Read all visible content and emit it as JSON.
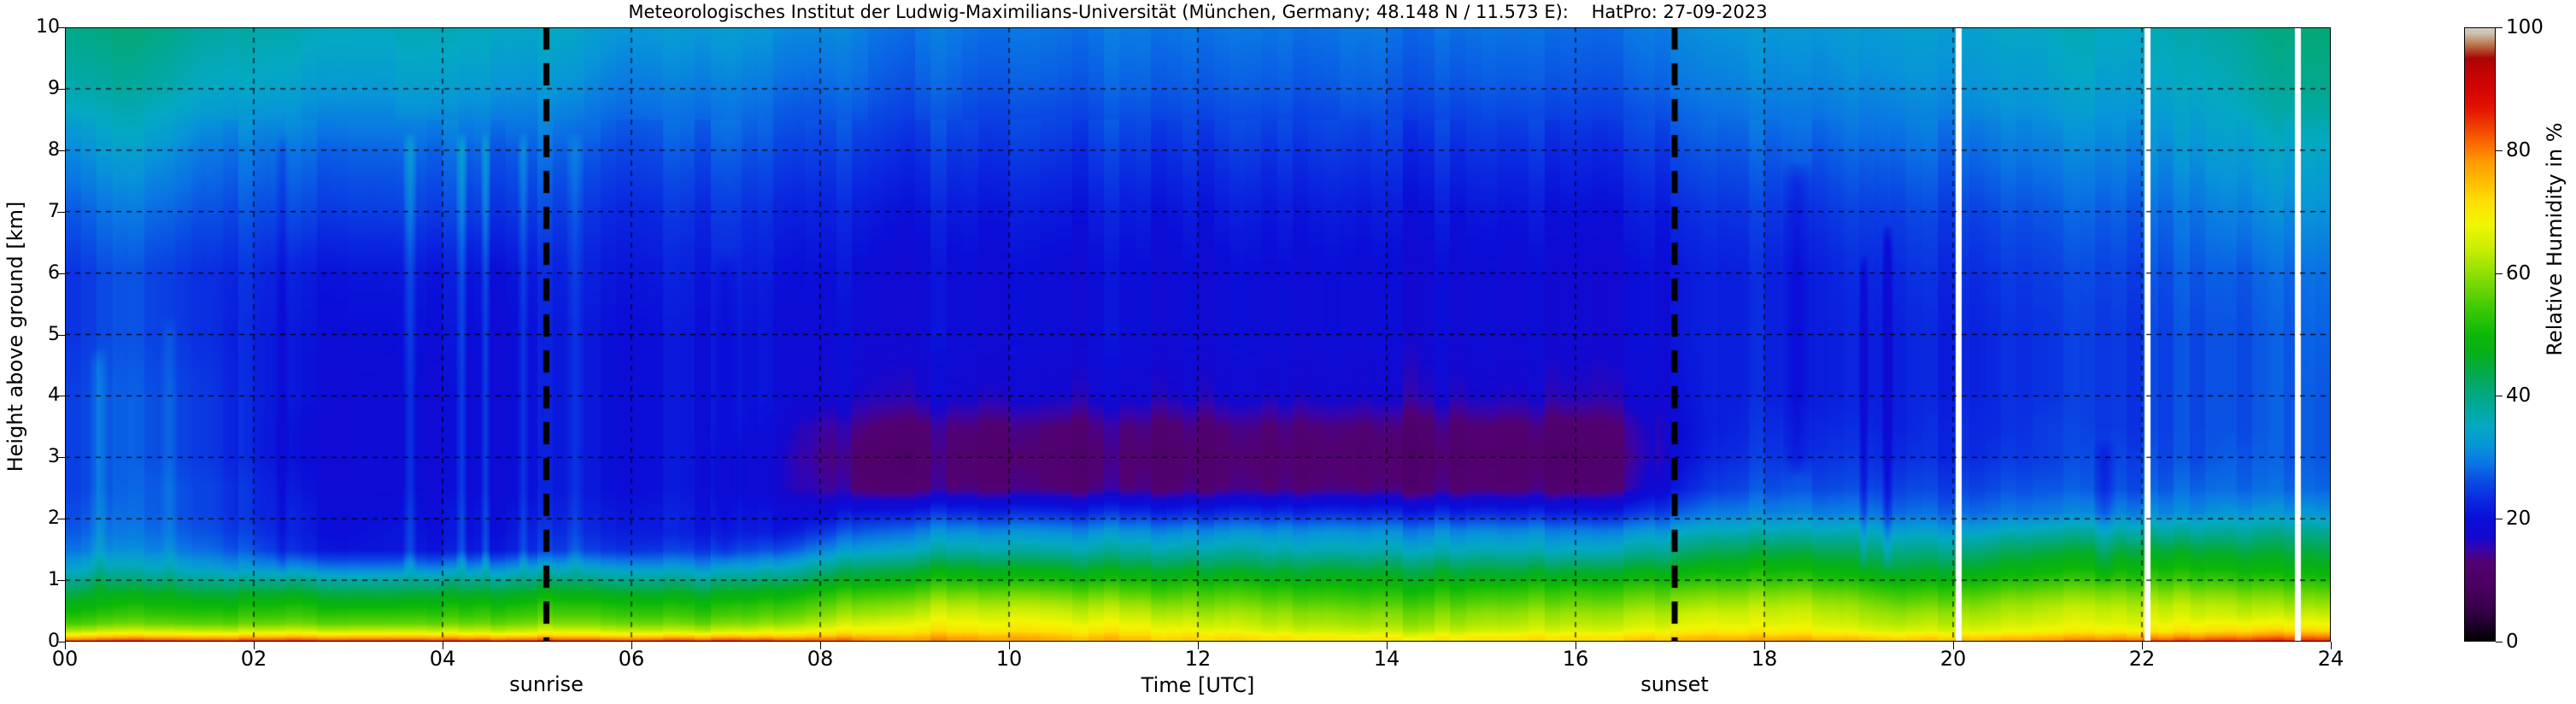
{
  "figure": {
    "title": "Meteorologisches Institut der Ludwig-Maximilians-Universität (München, Germany; 48.148 N / 11.573 E):    HatPro: 27-09-2023"
  },
  "axes": {
    "x": {
      "label": "Time [UTC]",
      "range": [
        0,
        24
      ],
      "tick_step_hours": 2,
      "ticks": [
        "00",
        "02",
        "04",
        "06",
        "08",
        "10",
        "12",
        "14",
        "16",
        "18",
        "20",
        "22",
        "24"
      ]
    },
    "y": {
      "label": "Height above ground [km]",
      "range": [
        0,
        10
      ],
      "ticks": [
        "0",
        "1",
        "2",
        "3",
        "4",
        "5",
        "6",
        "7",
        "8",
        "9",
        "10"
      ]
    }
  },
  "colorbar": {
    "label": "Relative Humidity in %",
    "range": [
      0,
      100
    ],
    "ticks": [
      "0",
      "20",
      "40",
      "60",
      "80",
      "100"
    ]
  },
  "annotations": {
    "sunrise": {
      "label": "sunrise",
      "time_utc": 5.1
    },
    "sunset": {
      "label": "sunset",
      "time_utc": 17.05
    }
  },
  "chart_data": {
    "type": "heatmap",
    "title": "Relative humidity time-height section from HATPRO microwave radiometer, 27-09-2023",
    "xlabel": "Time [UTC]",
    "ylabel": "Height above ground [km]",
    "zlabel": "Relative Humidity in %",
    "xlim": [
      0,
      24
    ],
    "ylim": [
      0,
      10
    ],
    "zlim": [
      0,
      100
    ],
    "grid": true,
    "x_hours": [
      0,
      0.5,
      1,
      1.5,
      2,
      2.5,
      3,
      3.5,
      4,
      4.5,
      5,
      5.5,
      6,
      6.5,
      7,
      7.5,
      8,
      8.5,
      9,
      9.5,
      10,
      10.5,
      11,
      11.5,
      12,
      12.5,
      13,
      13.5,
      14,
      14.5,
      15,
      15.5,
      16,
      16.5,
      17,
      17.5,
      18,
      18.5,
      19,
      19.5,
      20,
      20.5,
      21,
      21.5,
      22,
      22.5,
      23,
      23.5,
      24
    ],
    "heights_km": [
      0,
      0.05,
      0.1,
      0.18,
      0.3,
      0.45,
      0.6,
      0.8,
      1.0,
      1.2,
      1.5,
      1.8,
      2.1,
      2.5,
      3.0,
      3.5,
      4.0,
      5.0,
      6.0,
      7.0,
      8.0,
      9.0,
      10.0
    ],
    "rh_values": [
      [
        88,
        88,
        88,
        88,
        88,
        88,
        88,
        88,
        88,
        88,
        88,
        88,
        88,
        88,
        88,
        87,
        83,
        80,
        78,
        77,
        76,
        75,
        74,
        73,
        72,
        71,
        70,
        70,
        70,
        70,
        71,
        72,
        73,
        74,
        75,
        76,
        77,
        77,
        76,
        75,
        76,
        78,
        80,
        82,
        84,
        85,
        86,
        87,
        87
      ],
      [
        80,
        80,
        80,
        80,
        80,
        80,
        80,
        80,
        80,
        80,
        80,
        80,
        80,
        80,
        80,
        80,
        80,
        79,
        78,
        78,
        77,
        76,
        75,
        74,
        73,
        72,
        71,
        70,
        70,
        70,
        71,
        72,
        73,
        73,
        74,
        75,
        76,
        76,
        75,
        74,
        75,
        76,
        77,
        79,
        80,
        81,
        82,
        83,
        83
      ],
      [
        73,
        73,
        73,
        73,
        73,
        73,
        73,
        73,
        73,
        73,
        73,
        73,
        73,
        73,
        73,
        73,
        74,
        75,
        75,
        75,
        75,
        74,
        73,
        72,
        71,
        70,
        69,
        68,
        68,
        68,
        69,
        70,
        71,
        71,
        72,
        73,
        73,
        73,
        72,
        71,
        72,
        73,
        74,
        75,
        76,
        77,
        78,
        79,
        79
      ],
      [
        64,
        64,
        64,
        64,
        64,
        64,
        64,
        64,
        64,
        64,
        65,
        65,
        65,
        64,
        64,
        66,
        68,
        70,
        71,
        71,
        71,
        71,
        70,
        69,
        68,
        66,
        65,
        64,
        64,
        64,
        65,
        66,
        67,
        67,
        68,
        69,
        69,
        69,
        67,
        66,
        67,
        68,
        69,
        70,
        70,
        71,
        72,
        73,
        73
      ],
      [
        57,
        57,
        57,
        57,
        57,
        57,
        57,
        57,
        57,
        58,
        59,
        59,
        59,
        58,
        58,
        60,
        63,
        66,
        68,
        68,
        68,
        68,
        67,
        66,
        65,
        63,
        62,
        61,
        61,
        61,
        62,
        63,
        64,
        64,
        65,
        66,
        66,
        66,
        64,
        63,
        64,
        65,
        66,
        67,
        67,
        68,
        68,
        68,
        68
      ],
      [
        53,
        53,
        53,
        53,
        53,
        53,
        53,
        53,
        53,
        54,
        55,
        55,
        55,
        54,
        54,
        56,
        59,
        62,
        64,
        65,
        65,
        65,
        64,
        63,
        62,
        61,
        60,
        59,
        59,
        59,
        60,
        61,
        62,
        62,
        63,
        64,
        64,
        64,
        62,
        61,
        62,
        63,
        64,
        65,
        65,
        65,
        64,
        64,
        64
      ],
      [
        50,
        50,
        50,
        50,
        50,
        50,
        49,
        49,
        50,
        51,
        52,
        52,
        52,
        51,
        51,
        53,
        56,
        59,
        61,
        62,
        62,
        62,
        61,
        60,
        59,
        58,
        57,
        56,
        56,
        56,
        57,
        58,
        59,
        59,
        60,
        61,
        62,
        62,
        60,
        58,
        59,
        61,
        62,
        63,
        63,
        63,
        62,
        61,
        61
      ],
      [
        46,
        46,
        46,
        45,
        45,
        45,
        44,
        44,
        45,
        46,
        47,
        47,
        47,
        46,
        46,
        48,
        51,
        54,
        56,
        57,
        57,
        57,
        56,
        55,
        55,
        54,
        53,
        52,
        52,
        52,
        53,
        54,
        55,
        55,
        56,
        57,
        58,
        58,
        56,
        54,
        55,
        57,
        58,
        59,
        59,
        59,
        58,
        57,
        57
      ],
      [
        41,
        41,
        40,
        40,
        39,
        39,
        38,
        38,
        39,
        40,
        41,
        41,
        41,
        40,
        40,
        42,
        45,
        48,
        50,
        51,
        51,
        51,
        50,
        50,
        50,
        49,
        48,
        48,
        48,
        48,
        48,
        49,
        50,
        50,
        51,
        52,
        53,
        53,
        51,
        49,
        50,
        52,
        53,
        54,
        54,
        54,
        53,
        52,
        52
      ],
      [
        36,
        36,
        35,
        34,
        32,
        31,
        30,
        30,
        31,
        32,
        34,
        34,
        34,
        33,
        33,
        35,
        39,
        43,
        45,
        46,
        46,
        46,
        45,
        45,
        45,
        44,
        44,
        44,
        44,
        44,
        44,
        44,
        45,
        45,
        46,
        48,
        49,
        49,
        47,
        45,
        46,
        48,
        49,
        50,
        50,
        50,
        49,
        48,
        48
      ],
      [
        31,
        31,
        30,
        29,
        26,
        22,
        21,
        21,
        21,
        22,
        24,
        25,
        25,
        25,
        25,
        26,
        30,
        34,
        36,
        37,
        37,
        37,
        37,
        37,
        37,
        37,
        36,
        36,
        36,
        36,
        36,
        36,
        36,
        37,
        39,
        42,
        43,
        43,
        42,
        40,
        40,
        43,
        44,
        45,
        45,
        45,
        44,
        44,
        44
      ],
      [
        29,
        29,
        28,
        27,
        24,
        21,
        20,
        21,
        20,
        21,
        23,
        23,
        23,
        22,
        22,
        21,
        24,
        28,
        30,
        31,
        31,
        31,
        31,
        31,
        31,
        31,
        31,
        31,
        31,
        31,
        31,
        31,
        31,
        31,
        33,
        35,
        36,
        36,
        36,
        34,
        34,
        36,
        37,
        38,
        38,
        38,
        38,
        39,
        39
      ],
      [
        28,
        28,
        27,
        26,
        23,
        21,
        20,
        20,
        20,
        21,
        22,
        22,
        22,
        22,
        21,
        20,
        19,
        22,
        23,
        23,
        23,
        23,
        23,
        23,
        23,
        23,
        23,
        23,
        23,
        23,
        23,
        23,
        23,
        23,
        26,
        29,
        30,
        30,
        30,
        29,
        29,
        30,
        30,
        31,
        31,
        31,
        32,
        32,
        32
      ],
      [
        27,
        27,
        27,
        26,
        23,
        20,
        19,
        19,
        19,
        20,
        21,
        21,
        21,
        21,
        20,
        18,
        15,
        13,
        13,
        13,
        13,
        13,
        13,
        13,
        13,
        13,
        13,
        13,
        13,
        13,
        13,
        13,
        13,
        14,
        20,
        24,
        26,
        26,
        26,
        26,
        26,
        27,
        27,
        27,
        27,
        28,
        28,
        28,
        28
      ],
      [
        27,
        27,
        26,
        25,
        22,
        19,
        19,
        19,
        19,
        20,
        21,
        21,
        21,
        21,
        20,
        18,
        14,
        12,
        12,
        12,
        12,
        12,
        12,
        12,
        12,
        12,
        12,
        12,
        12,
        12,
        12,
        12,
        12,
        13,
        18,
        22,
        24,
        24,
        24,
        24,
        24,
        25,
        25,
        26,
        26,
        26,
        27,
        27,
        27
      ],
      [
        27,
        27,
        26,
        25,
        22,
        19,
        19,
        19,
        19,
        20,
        21,
        21,
        21,
        21,
        21,
        19,
        15,
        14,
        13,
        13,
        13,
        13,
        13,
        13,
        13,
        13,
        13,
        13,
        13,
        13,
        13,
        13,
        13,
        14,
        18,
        21,
        23,
        23,
        23,
        23,
        24,
        24,
        25,
        25,
        25,
        26,
        26,
        27,
        27
      ],
      [
        27,
        27,
        26,
        25,
        22,
        20,
        19,
        19,
        19,
        20,
        21,
        21,
        21,
        21,
        21,
        20,
        18,
        17,
        17,
        17,
        17,
        17,
        17,
        17,
        17,
        17,
        17,
        17,
        17,
        17,
        17,
        17,
        17,
        17,
        19,
        21,
        22,
        22,
        22,
        23,
        23,
        24,
        24,
        25,
        25,
        26,
        26,
        27,
        27
      ],
      [
        26,
        26,
        25,
        24,
        22,
        20,
        20,
        20,
        20,
        20,
        21,
        21,
        21,
        21,
        21,
        20,
        19,
        19,
        19,
        19,
        19,
        19,
        19,
        19,
        19,
        19,
        19,
        19,
        19,
        19,
        19,
        19,
        19,
        19,
        20,
        21,
        22,
        22,
        22,
        23,
        23,
        24,
        24,
        25,
        25,
        26,
        26,
        27,
        28
      ],
      [
        26,
        26,
        25,
        24,
        23,
        21,
        21,
        21,
        21,
        21,
        22,
        22,
        22,
        22,
        22,
        21,
        20,
        20,
        19,
        19,
        19,
        19,
        19,
        19,
        19,
        19,
        19,
        19,
        19,
        19,
        19,
        19,
        19,
        19,
        20,
        21,
        22,
        22,
        23,
        24,
        24,
        25,
        25,
        26,
        26,
        27,
        27,
        28,
        29
      ],
      [
        29,
        29,
        28,
        27,
        26,
        25,
        25,
        25,
        25,
        25,
        25,
        24,
        24,
        24,
        24,
        23,
        22,
        22,
        21,
        21,
        21,
        21,
        21,
        21,
        21,
        21,
        21,
        21,
        21,
        21,
        21,
        21,
        21,
        21,
        22,
        23,
        24,
        24,
        25,
        26,
        26,
        27,
        27,
        28,
        28,
        29,
        30,
        31,
        32
      ],
      [
        33,
        33,
        32,
        30,
        29,
        28,
        28,
        28,
        28,
        28,
        28,
        27,
        27,
        27,
        27,
        26,
        25,
        25,
        24,
        24,
        24,
        24,
        24,
        24,
        24,
        24,
        24,
        24,
        24,
        24,
        24,
        24,
        24,
        24,
        25,
        26,
        27,
        27,
        28,
        29,
        29,
        30,
        30,
        31,
        31,
        32,
        33,
        34,
        35
      ],
      [
        38,
        38,
        37,
        35,
        34,
        33,
        33,
        33,
        33,
        33,
        32,
        31,
        30,
        30,
        30,
        29,
        28,
        28,
        27,
        27,
        27,
        27,
        27,
        27,
        27,
        27,
        27,
        27,
        27,
        27,
        27,
        27,
        27,
        27,
        28,
        29,
        30,
        30,
        31,
        32,
        32,
        33,
        33,
        34,
        34,
        35,
        36,
        38,
        39
      ],
      [
        41,
        41,
        40,
        38,
        37,
        36,
        36,
        36,
        36,
        36,
        35,
        34,
        33,
        33,
        33,
        32,
        31,
        30,
        29,
        29,
        29,
        29,
        29,
        29,
        29,
        29,
        29,
        29,
        29,
        29,
        29,
        29,
        29,
        29,
        30,
        31,
        32,
        32,
        33,
        34,
        34,
        35,
        35,
        36,
        36,
        37,
        38,
        40,
        41
      ]
    ],
    "stripe_features": [
      {
        "t": 0.35,
        "w": 0.2,
        "h0": 1.0,
        "h1": 4.5,
        "d": 3
      },
      {
        "t": 1.1,
        "w": 0.2,
        "h0": 1.0,
        "h1": 5.0,
        "d": 2
      },
      {
        "t": 2.3,
        "w": 0.15,
        "h0": 1.3,
        "h1": 8.0,
        "d": -2
      },
      {
        "t": 3.65,
        "w": 0.15,
        "h0": 1.3,
        "h1": 8.0,
        "d": 5
      },
      {
        "t": 4.2,
        "w": 0.12,
        "h0": 1.3,
        "h1": 8.0,
        "d": 6
      },
      {
        "t": 4.45,
        "w": 0.1,
        "h0": 1.3,
        "h1": 8.0,
        "d": 5
      },
      {
        "t": 4.85,
        "w": 0.12,
        "h0": 1.3,
        "h1": 8.0,
        "d": 4
      },
      {
        "t": 5.4,
        "w": 0.2,
        "h0": 1.3,
        "h1": 8.0,
        "d": 3
      },
      {
        "t": 7.0,
        "w": 0.3,
        "h0": 1.5,
        "h1": 6.0,
        "d": -2
      },
      {
        "t": 18.35,
        "w": 0.35,
        "h0": 3.0,
        "h1": 7.5,
        "d": -3
      },
      {
        "t": 19.05,
        "w": 0.1,
        "h0": 1.4,
        "h1": 6.0,
        "d": -4
      },
      {
        "t": 19.3,
        "w": 0.12,
        "h0": 1.4,
        "h1": 6.5,
        "d": -5
      },
      {
        "t": 21.6,
        "w": 0.25,
        "h0": 1.2,
        "h1": 3.0,
        "d": -3
      }
    ],
    "data_gaps_utc": [
      20.05,
      22.05,
      23.65
    ],
    "sunrise_utc": 5.1,
    "sunset_utc": 17.05,
    "colormap_stops": [
      [
        0,
        "#000000"
      ],
      [
        2,
        "#15001d"
      ],
      [
        5,
        "#350046"
      ],
      [
        9,
        "#4b0061"
      ],
      [
        13,
        "#520172"
      ],
      [
        15,
        "#3a04a8"
      ],
      [
        17,
        "#1508cf"
      ],
      [
        20,
        "#0a0ed8"
      ],
      [
        23,
        "#0a28e0"
      ],
      [
        26,
        "#0a4ae4"
      ],
      [
        29,
        "#0a74e4"
      ],
      [
        32,
        "#0795d8"
      ],
      [
        35,
        "#04a8c4"
      ],
      [
        38,
        "#02a89e"
      ],
      [
        41,
        "#03a878"
      ],
      [
        44,
        "#04aa48"
      ],
      [
        47,
        "#06b01a"
      ],
      [
        50,
        "#0cb808"
      ],
      [
        55,
        "#46cc04"
      ],
      [
        60,
        "#90e002"
      ],
      [
        64,
        "#c8ee02"
      ],
      [
        68,
        "#f2f602"
      ],
      [
        72,
        "#fede02"
      ],
      [
        74,
        "#ffc602"
      ],
      [
        78,
        "#ff9d00"
      ],
      [
        81,
        "#fb6c00"
      ],
      [
        84,
        "#f03c00"
      ],
      [
        87,
        "#e41200"
      ],
      [
        90,
        "#d60404"
      ],
      [
        93,
        "#c00404"
      ],
      [
        95,
        "#ac0404"
      ],
      [
        97,
        "#b86a40"
      ],
      [
        99,
        "#cabfae"
      ],
      [
        100,
        "#d6d2c6"
      ]
    ]
  }
}
